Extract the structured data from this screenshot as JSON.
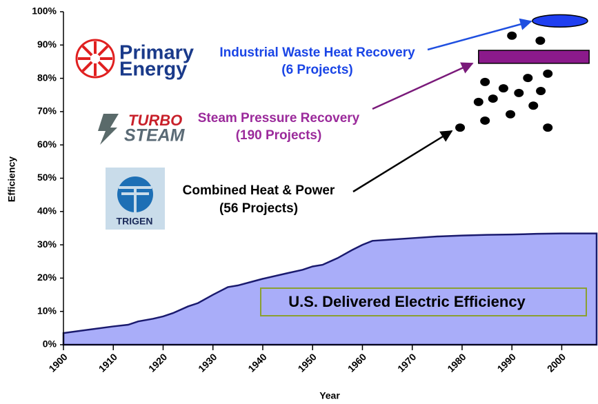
{
  "chart_data": {
    "type": "area",
    "xlabel": "Year",
    "ylabel": "Efficiency",
    "xlim": [
      1900,
      2007
    ],
    "ylim": [
      0,
      100
    ],
    "xticks": [
      1900,
      1910,
      1920,
      1930,
      1940,
      1950,
      1960,
      1970,
      1980,
      1990,
      2000
    ],
    "yticks": [
      {
        "value": 0,
        "label": "0%"
      },
      {
        "value": 10,
        "label": "10%"
      },
      {
        "value": 20,
        "label": "20%"
      },
      {
        "value": 30,
        "label": "30%"
      },
      {
        "value": 40,
        "label": "40%"
      },
      {
        "value": 50,
        "label": "50%"
      },
      {
        "value": 60,
        "label": "60%"
      },
      {
        "value": 70,
        "label": "70%"
      },
      {
        "value": 80,
        "label": "80%"
      },
      {
        "value": 90,
        "label": "90%"
      },
      {
        "value": 100,
        "label": "100%"
      }
    ],
    "x": [
      1900,
      1905,
      1910,
      1913,
      1915,
      1918,
      1920,
      1922,
      1925,
      1927,
      1930,
      1933,
      1935,
      1938,
      1940,
      1945,
      1948,
      1950,
      1952,
      1955,
      1958,
      1960,
      1962,
      1965,
      1970,
      1975,
      1980,
      1985,
      1990,
      1995,
      2000,
      2007
    ],
    "series": [
      {
        "name": "U.S. Delivered Electric Efficiency",
        "color": "#a9adf9",
        "values": [
          3.5,
          4.5,
          5.5,
          6,
          7,
          7.8,
          8.5,
          9.5,
          11.5,
          12.5,
          15,
          17.3,
          17.8,
          19,
          19.8,
          21.5,
          22.5,
          23.5,
          24,
          26,
          28.5,
          30,
          31.2,
          31.5,
          32,
          32.5,
          32.8,
          33,
          33.1,
          33.3,
          33.4,
          33.4
        ]
      }
    ],
    "projects": {
      "chp": {
        "color": "#000000",
        "x": [
          1979.6,
          1984.6,
          1983.3,
          1986.2,
          1984.6,
          1988.3,
          1991.4,
          1989.7,
          1993.2,
          1994.3,
          1995.8,
          1997.2,
          1997.2,
          1990,
          1995.7
        ],
        "y": [
          65.2,
          67.3,
          72.9,
          73.9,
          78.9,
          77,
          75.6,
          69.2,
          80.1,
          71.8,
          76.2,
          81.4,
          65.2,
          92.8,
          91.3
        ]
      },
      "steam": {
        "color": "#8b1a8b",
        "x": [
          1983.3,
          2005.5
        ],
        "y": [
          84.5,
          88.4
        ]
      },
      "waste_heat": {
        "color": "#1f3ff0",
        "x": [
          1994.1,
          2005.2
        ],
        "y": [
          95.4,
          99.1
        ]
      }
    },
    "annotations": [
      {
        "label": "Industrial Waste Heat Recovery",
        "count": "(6 Projects)"
      },
      {
        "label": "Steam Pressure Recovery",
        "count": "(190 Projects)"
      },
      {
        "label": "Combined Heat & Power",
        "count": "(56 Projects)"
      }
    ],
    "logos": [
      {
        "line1": "Primary",
        "line2": "Energy"
      },
      {
        "line1": "TURBO",
        "line2": "STEAM"
      },
      {
        "line1": "TRIGEN"
      }
    ]
  }
}
